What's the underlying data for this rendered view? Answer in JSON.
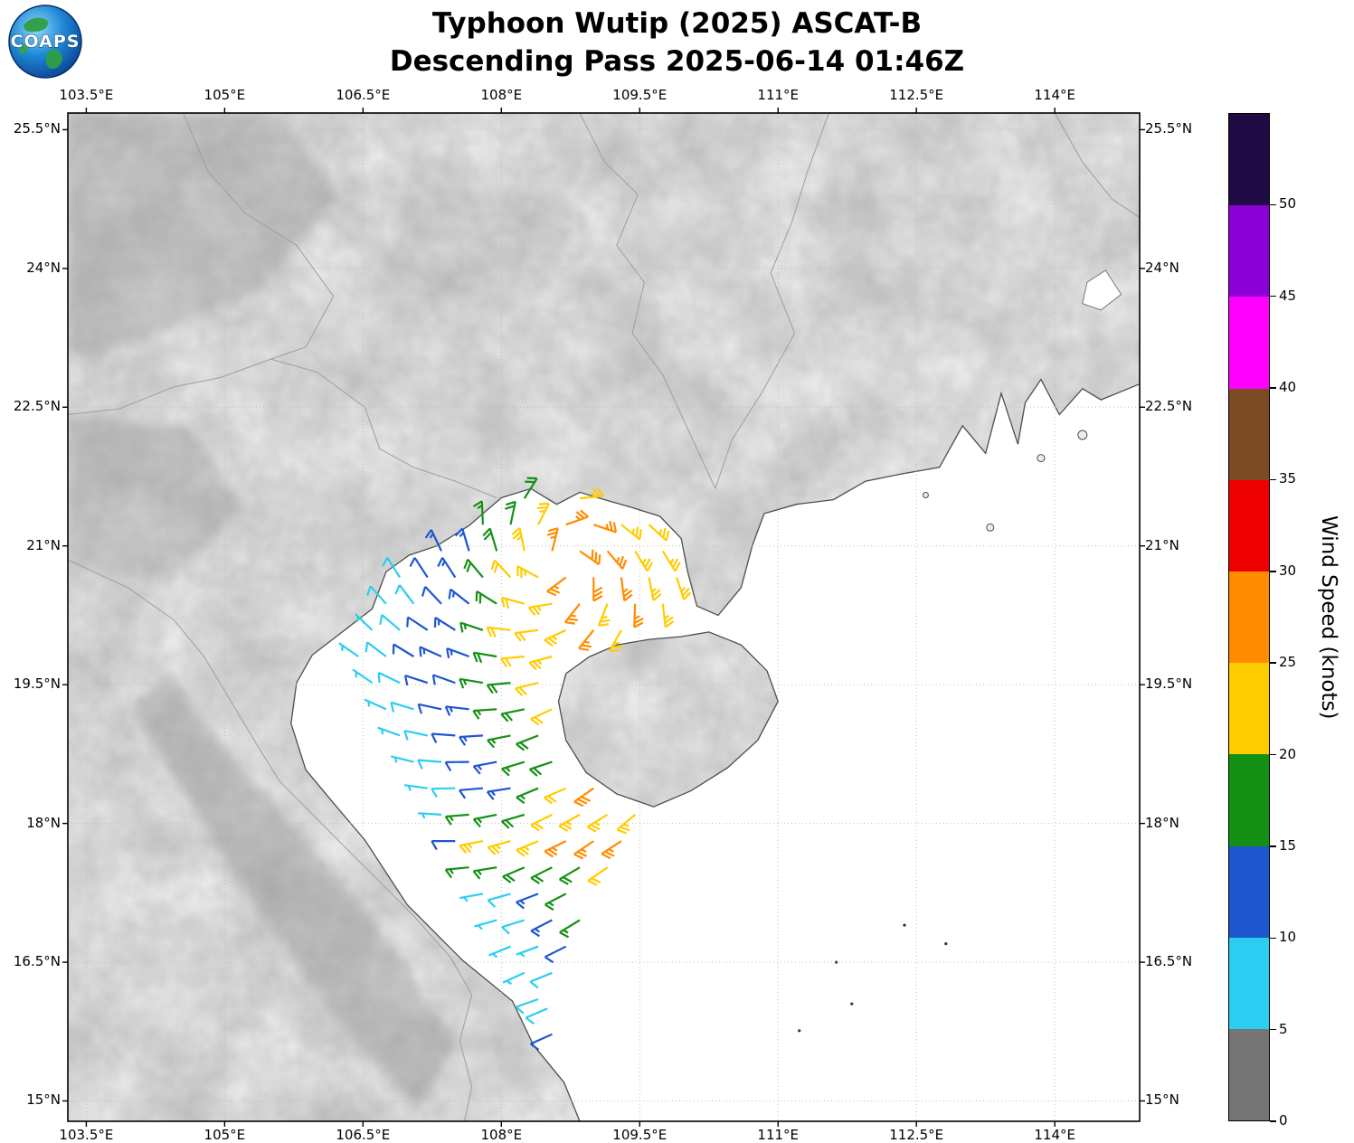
{
  "header": {
    "title_line1": "Typhoon Wutip (2025) ASCAT-B",
    "title_line2": "Descending Pass 2025-06-14 01:46Z",
    "logo_text": "COAPS"
  },
  "chart_data": {
    "type": "wind_barb_map",
    "title": "Typhoon Wutip (2025) ASCAT-B",
    "subtitle": "Descending Pass 2025-06-14 01:46Z",
    "projection": {
      "lon_min": 103.3,
      "lon_max": 114.92,
      "lat_min": 14.78,
      "lat_max": 25.68
    },
    "x_ticks": {
      "values": [
        103.5,
        105,
        106.5,
        108,
        109.5,
        111,
        112.5,
        114
      ],
      "labels": [
        "103.5°E",
        "105°E",
        "106.5°E",
        "108°E",
        "109.5°E",
        "111°E",
        "112.5°E",
        "114°E"
      ]
    },
    "y_ticks": {
      "values": [
        15,
        16.5,
        18,
        19.5,
        21,
        22.5,
        24,
        25.5
      ],
      "labels": [
        "15°N",
        "16.5°N",
        "18°N",
        "19.5°N",
        "21°N",
        "22.5°N",
        "24°N",
        "25.5°N"
      ]
    },
    "grid": {
      "style": "dotted",
      "color": "#bdbdbd"
    },
    "colorbar": {
      "label": "Wind Speed (knots)",
      "tick_values": [
        0,
        5,
        10,
        15,
        20,
        25,
        30,
        35,
        40,
        45,
        50
      ],
      "tick_labels": [
        "0",
        "5",
        "10",
        "15",
        "20",
        "25",
        "30",
        "35",
        "40",
        "45",
        "50"
      ],
      "segment_ranges": [
        "0-5",
        "5-10",
        "10-15",
        "15-20",
        "20-25",
        "25-30",
        "30-35",
        "35-40",
        "40-45",
        "45-50",
        "50+"
      ],
      "segment_colors": [
        "#757575",
        "#2bcdf0",
        "#1e56d0",
        "#149114",
        "#ffcc00",
        "#ff8c00",
        "#ee0000",
        "#7d4a26",
        "#ff00ff",
        "#8c00d8",
        "#200a44"
      ]
    },
    "wind_model": {
      "center_lon": 108.65,
      "center_lat": 20.85,
      "rotation": "cyclonic_counterclockwise",
      "inflow_deg": 25,
      "grid": {
        "lat_min": 16.1,
        "lat_max": 21.55,
        "dlat": 0.285,
        "lon_min": 106.3,
        "lon_max": 110.05,
        "dlon": 0.3,
        "stagger_lon": 0.15
      },
      "west_edge": [
        [
          16.1,
          108.15
        ],
        [
          16.6,
          107.95
        ],
        [
          17.2,
          107.7
        ],
        [
          17.9,
          107.3
        ],
        [
          18.6,
          106.85
        ],
        [
          19.4,
          106.5
        ],
        [
          20.2,
          106.3
        ],
        [
          20.9,
          106.35
        ],
        [
          21.3,
          106.9
        ],
        [
          21.6,
          107.3
        ]
      ],
      "east_edge": [
        [
          16.1,
          108.45
        ],
        [
          16.6,
          108.95
        ],
        [
          17.3,
          108.95
        ],
        [
          17.8,
          109.5
        ],
        [
          18.15,
          109.5
        ],
        [
          18.5,
          108.95
        ],
        [
          19.0,
          108.7
        ],
        [
          19.9,
          108.7
        ],
        [
          20.15,
          109.6
        ],
        [
          20.5,
          109.95
        ],
        [
          21.15,
          109.95
        ],
        [
          21.6,
          109.6
        ]
      ],
      "base_min_kt": 6,
      "base_amp_kt": 15,
      "vortex_bump": {
        "amp_kt": 12,
        "sigma_deg": 1.0
      },
      "south_band": {
        "lat_center": 17.8,
        "amp_kt": 23,
        "sigma_deg": 0.55,
        "lon_ramp_start": 107.25,
        "lon_ramp_width": 0.45
      },
      "se_bump": {
        "lon": 109.05,
        "lat": 18.25,
        "amp_kt": 8,
        "sigma_deg": 0.5
      },
      "south_damping": {
        "lat_start": 17.35,
        "max_reduction": 0.45,
        "ramp_deg": 0.8
      },
      "speed_min_kt": 5.5,
      "speed_cap_kt": 29,
      "barb_convention": {
        "full_barb_kt": 10,
        "half_barb_kt": 5
      },
      "extra_barbs": [
        [
          108.55,
          15.72,
          11
        ],
        [
          108.5,
          16.0,
          8
        ]
      ]
    }
  },
  "map": {
    "sea_color": "#ffffff",
    "land_color": "#ececec",
    "coast_color": "#4d4d4d",
    "border_color": "#9e9e9e",
    "mainland_coast": [
      [
        114.92,
        22.75
      ],
      [
        114.5,
        22.58
      ],
      [
        114.3,
        22.7
      ],
      [
        114.05,
        22.42
      ],
      [
        113.85,
        22.8
      ],
      [
        113.68,
        22.55
      ],
      [
        113.6,
        22.1
      ],
      [
        113.42,
        22.65
      ],
      [
        113.25,
        22.0
      ],
      [
        113.0,
        22.3
      ],
      [
        112.75,
        21.85
      ],
      [
        112.35,
        21.78
      ],
      [
        111.95,
        21.7
      ],
      [
        111.6,
        21.5
      ],
      [
        111.2,
        21.45
      ],
      [
        110.85,
        21.35
      ],
      [
        110.72,
        21.0
      ],
      [
        110.6,
        20.55
      ],
      [
        110.35,
        20.25
      ],
      [
        110.12,
        20.35
      ],
      [
        110.02,
        20.72
      ],
      [
        109.95,
        21.08
      ],
      [
        109.72,
        21.32
      ],
      [
        109.4,
        21.42
      ],
      [
        109.12,
        21.5
      ],
      [
        108.85,
        21.58
      ],
      [
        108.6,
        21.45
      ],
      [
        108.32,
        21.62
      ],
      [
        108.0,
        21.52
      ],
      [
        107.65,
        21.22
      ],
      [
        107.3,
        21.0
      ],
      [
        107.0,
        20.9
      ],
      [
        106.75,
        20.72
      ],
      [
        106.6,
        20.32
      ],
      [
        106.25,
        20.05
      ],
      [
        105.95,
        19.82
      ],
      [
        105.78,
        19.52
      ],
      [
        105.72,
        19.08
      ],
      [
        105.88,
        18.58
      ],
      [
        106.18,
        18.22
      ],
      [
        106.52,
        17.82
      ],
      [
        106.98,
        17.12
      ],
      [
        107.58,
        16.52
      ],
      [
        108.12,
        16.08
      ],
      [
        108.35,
        15.6
      ],
      [
        108.68,
        15.2
      ],
      [
        108.85,
        14.78
      ]
    ],
    "mainland_closure": [
      [
        103.3,
        14.78
      ],
      [
        103.3,
        25.68
      ],
      [
        114.92,
        25.68
      ]
    ],
    "hainan": [
      [
        108.62,
        19.32
      ],
      [
        108.7,
        19.62
      ],
      [
        108.95,
        19.8
      ],
      [
        109.25,
        19.93
      ],
      [
        109.6,
        19.99
      ],
      [
        109.95,
        20.02
      ],
      [
        110.25,
        20.07
      ],
      [
        110.6,
        19.93
      ],
      [
        110.88,
        19.65
      ],
      [
        111.0,
        19.32
      ],
      [
        110.78,
        18.9
      ],
      [
        110.45,
        18.6
      ],
      [
        110.05,
        18.35
      ],
      [
        109.65,
        18.18
      ],
      [
        109.25,
        18.32
      ],
      [
        108.92,
        18.55
      ],
      [
        108.7,
        18.9
      ],
      [
        108.62,
        19.32
      ]
    ],
    "borders": [
      [
        [
          107.95,
          21.52
        ],
        [
          107.5,
          21.7
        ],
        [
          107.05,
          21.85
        ],
        [
          106.68,
          22.05
        ],
        [
          106.52,
          22.5
        ],
        [
          106.0,
          22.88
        ],
        [
          105.5,
          23.02
        ],
        [
          104.95,
          22.82
        ],
        [
          104.45,
          22.72
        ],
        [
          103.85,
          22.48
        ],
        [
          103.3,
          22.42
        ]
      ],
      [
        [
          103.3,
          20.85
        ],
        [
          103.95,
          20.55
        ],
        [
          104.45,
          20.2
        ],
        [
          104.78,
          19.8
        ],
        [
          105.08,
          19.3
        ],
        [
          105.35,
          18.85
        ],
        [
          105.6,
          18.45
        ],
        [
          106.05,
          18.0
        ],
        [
          106.55,
          17.5
        ],
        [
          107.05,
          17.0
        ],
        [
          107.45,
          16.55
        ],
        [
          107.68,
          16.15
        ],
        [
          107.55,
          15.65
        ],
        [
          107.68,
          15.15
        ],
        [
          107.6,
          14.78
        ]
      ],
      [
        [
          111.55,
          25.68
        ],
        [
          111.32,
          25.05
        ],
        [
          111.15,
          24.5
        ],
        [
          110.92,
          23.95
        ],
        [
          111.18,
          23.3
        ],
        [
          110.82,
          22.65
        ],
        [
          110.5,
          22.15
        ],
        [
          110.32,
          21.62
        ]
      ],
      [
        [
          104.55,
          25.68
        ],
        [
          104.82,
          25.05
        ],
        [
          105.22,
          24.6
        ],
        [
          105.78,
          24.25
        ],
        [
          106.18,
          23.7
        ],
        [
          105.88,
          23.15
        ],
        [
          105.5,
          23.02
        ]
      ],
      [
        [
          108.85,
          25.68
        ],
        [
          109.12,
          25.15
        ],
        [
          109.48,
          24.8
        ],
        [
          109.25,
          24.25
        ],
        [
          109.55,
          23.85
        ],
        [
          109.42,
          23.3
        ],
        [
          109.75,
          22.85
        ],
        [
          110.32,
          21.62
        ]
      ],
      [
        [
          114.0,
          25.68
        ],
        [
          114.3,
          25.15
        ],
        [
          114.62,
          24.75
        ],
        [
          114.92,
          24.55
        ]
      ]
    ],
    "terrain_blobs": [
      {
        "points": [
          [
            104.4,
            19.6
          ],
          [
            105.1,
            18.7
          ],
          [
            105.9,
            17.8
          ],
          [
            106.8,
            16.7
          ],
          [
            107.5,
            15.6
          ],
          [
            107.1,
            14.9
          ],
          [
            106.2,
            15.9
          ],
          [
            105.2,
            17.3
          ],
          [
            104.4,
            18.6
          ],
          [
            104.0,
            19.3
          ]
        ],
        "fill": "#c6c6c6"
      },
      {
        "points": [
          [
            103.3,
            25.68
          ],
          [
            105.6,
            25.68
          ],
          [
            106.2,
            24.8
          ],
          [
            105.4,
            23.8
          ],
          [
            104.3,
            23.3
          ],
          [
            103.3,
            23.0
          ]
        ],
        "fill": "#cccccc"
      },
      {
        "points": [
          [
            103.3,
            22.4
          ],
          [
            104.6,
            22.3
          ],
          [
            105.2,
            21.4
          ],
          [
            104.4,
            20.6
          ],
          [
            103.3,
            20.8
          ]
        ],
        "fill": "#cdcdcd"
      },
      {
        "points": [
          [
            107.0,
            25.3
          ],
          [
            109.0,
            24.6
          ],
          [
            108.2,
            23.5
          ],
          [
            106.8,
            23.9
          ]
        ],
        "fill": "#dddddd"
      }
    ],
    "islands": [
      {
        "lon": 113.3,
        "lat": 21.2,
        "r": 4
      },
      {
        "lon": 113.85,
        "lat": 21.95,
        "r": 4
      },
      {
        "lon": 114.3,
        "lat": 22.2,
        "r": 5
      },
      {
        "lon": 112.6,
        "lat": 21.55,
        "r": 3
      }
    ],
    "islets": [
      [
        112.37,
        16.9
      ],
      [
        112.82,
        16.7
      ],
      [
        111.63,
        16.5
      ],
      [
        111.8,
        16.05
      ],
      [
        111.23,
        15.76
      ]
    ],
    "lake": [
      [
        114.35,
        23.85
      ],
      [
        114.55,
        23.98
      ],
      [
        114.72,
        23.72
      ],
      [
        114.5,
        23.55
      ],
      [
        114.3,
        23.62
      ]
    ]
  }
}
